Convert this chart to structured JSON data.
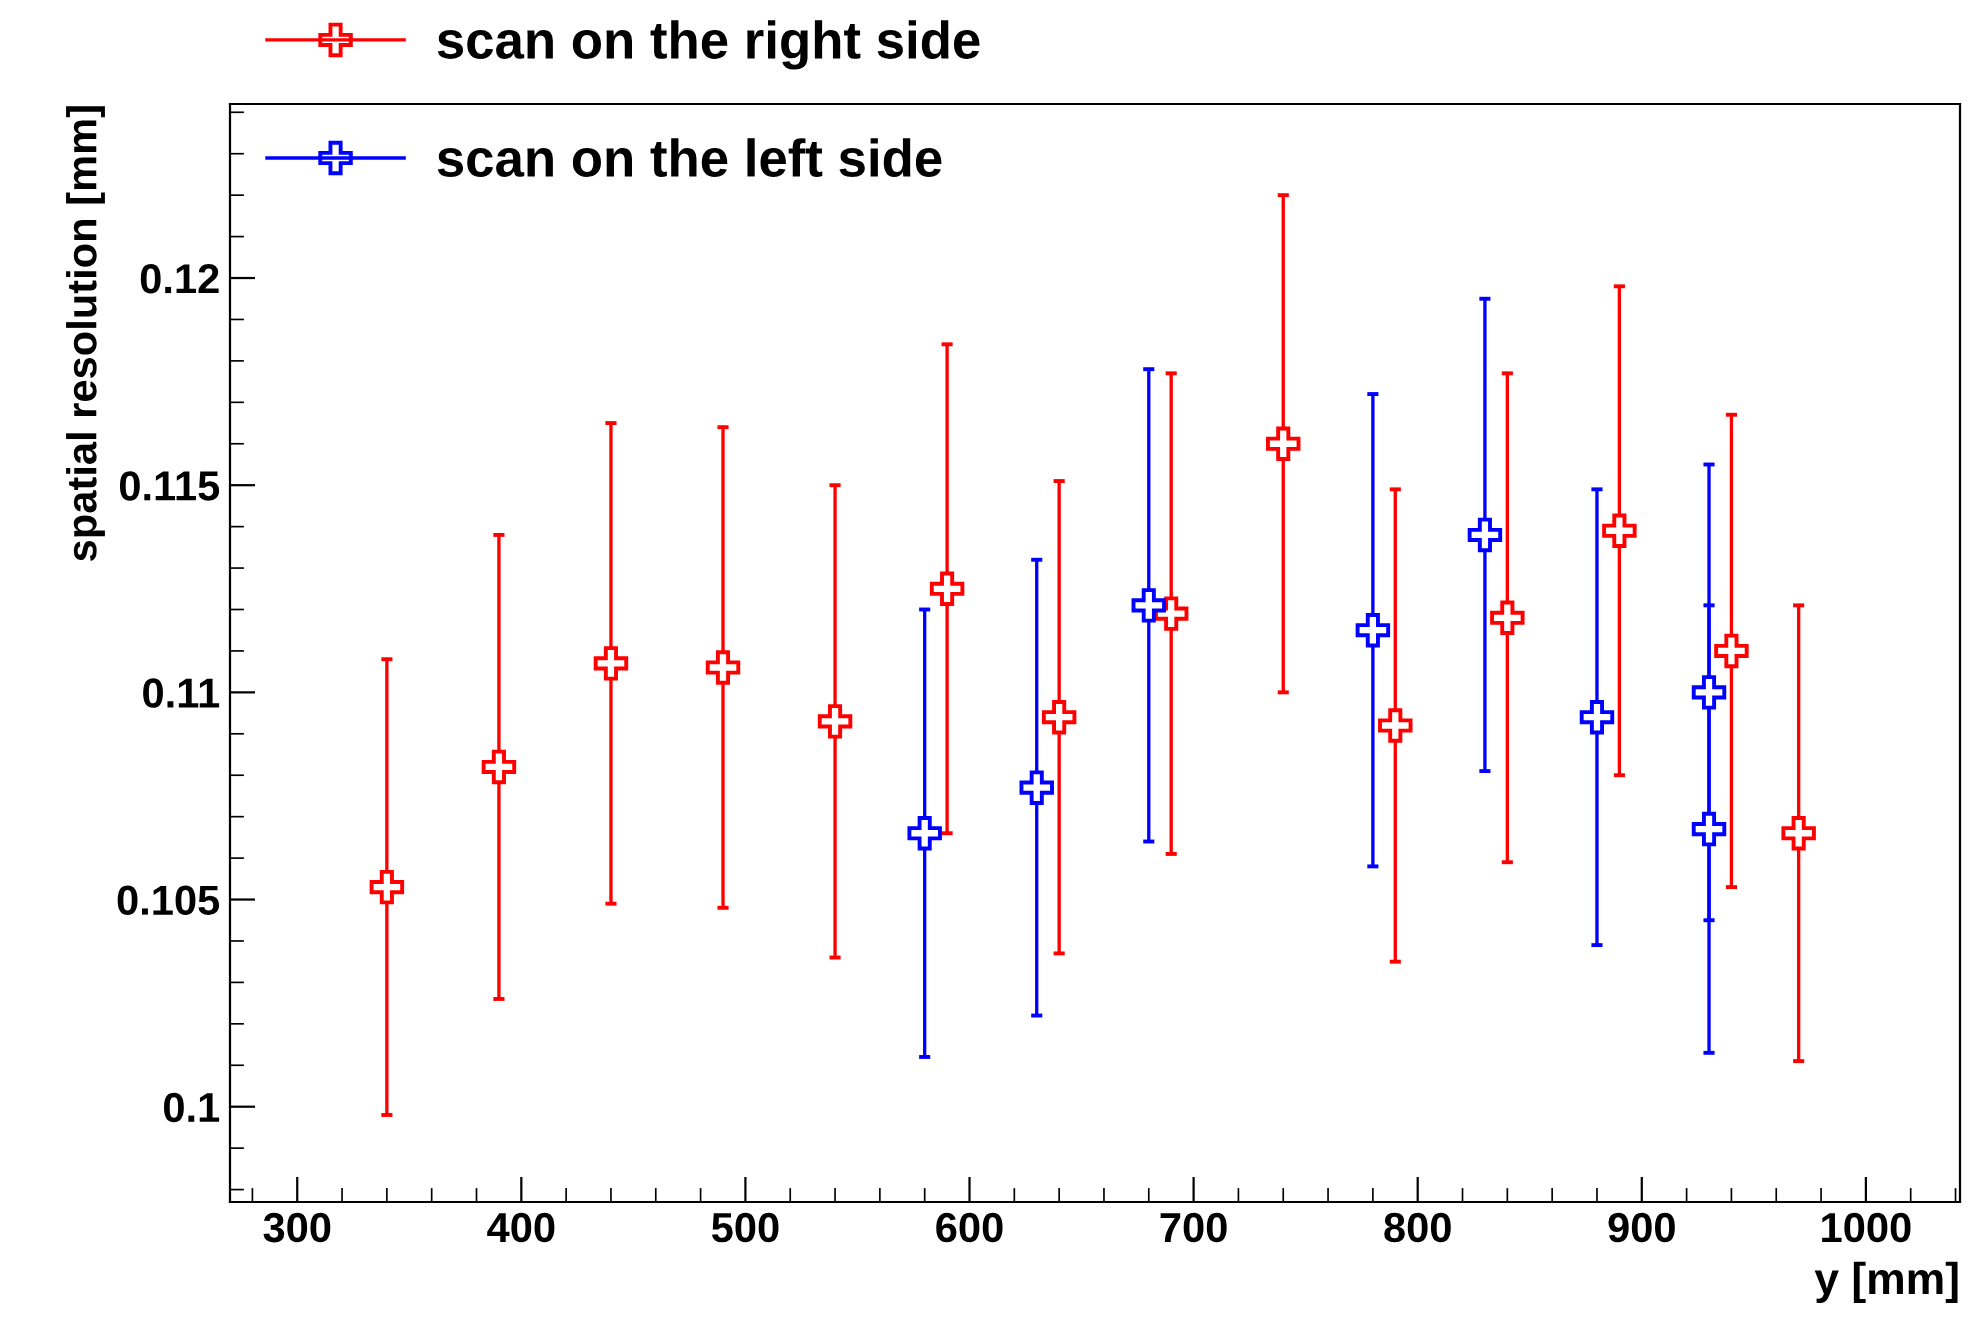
{
  "chart_data": {
    "type": "scatter",
    "xlabel": "y [mm]",
    "ylabel": "spatial resolution [mm]",
    "xlim": [
      270,
      1042
    ],
    "ylim": [
      0.0977,
      0.1242
    ],
    "xticks": [
      300,
      400,
      500,
      600,
      700,
      800,
      900,
      1000
    ],
    "yticks": [
      {
        "value": 0.1,
        "label": "0.1"
      },
      {
        "value": 0.105,
        "label": "0.105"
      },
      {
        "value": 0.11,
        "label": "0.11"
      },
      {
        "value": 0.115,
        "label": "0.115"
      },
      {
        "value": 0.12,
        "label": "0.12"
      }
    ],
    "marker": "cross",
    "grid": false,
    "legend": "top left",
    "series": [
      {
        "name": "scan on the right side",
        "color": "#ff0000",
        "x": [
          340,
          390,
          440,
          490,
          540,
          590,
          640,
          690,
          740,
          790,
          840,
          890,
          940,
          970
        ],
        "values": [
          0.1053,
          0.1082,
          0.1107,
          0.1106,
          0.1093,
          0.1125,
          0.1094,
          0.1119,
          0.116,
          0.1092,
          0.1118,
          0.1139,
          0.111,
          0.1066
        ],
        "errors": [
          0.0055,
          0.0056,
          0.0058,
          0.0058,
          0.0057,
          0.0059,
          0.0057,
          0.0058,
          0.006,
          0.0057,
          0.0059,
          0.0059,
          0.0057,
          0.0055
        ]
      },
      {
        "name": "scan on the left side",
        "color": "#0000ff",
        "x": [
          580,
          630,
          680,
          780,
          830,
          880,
          930,
          930
        ],
        "values": [
          0.1066,
          0.1077,
          0.1121,
          0.1115,
          0.1138,
          0.1094,
          0.11,
          0.1067
        ],
        "errors": [
          0.0054,
          0.0055,
          0.0057,
          0.0057,
          0.0057,
          0.0055,
          0.0055,
          0.0054
        ]
      }
    ]
  }
}
